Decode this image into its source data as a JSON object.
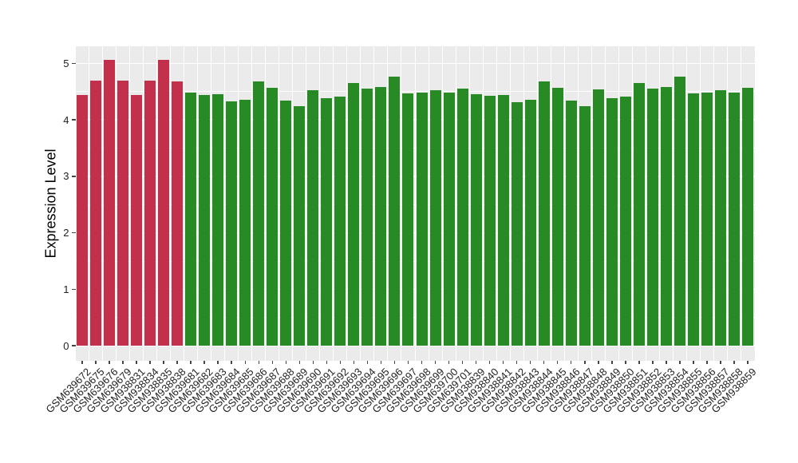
{
  "figure": {
    "background_color": "#FFFFFF",
    "panel_background_color": "#EBEBEB",
    "gridline_color": "#FFFFFF",
    "tick_mark_color": "#444444",
    "axis_text_color": "#222222"
  },
  "chart_data": {
    "type": "bar",
    "title": "",
    "xlabel": "",
    "ylabel": "Expression Level",
    "ylim": [
      -0.26,
      5.3
    ],
    "yticks": [
      0,
      1,
      2,
      3,
      4,
      5
    ],
    "yticks_minor": [
      0.5,
      1.5,
      2.5,
      3.5,
      4.5
    ],
    "grid": "white major/minor horizontal lines and vertical category-boundary lines on gray panel",
    "legend_position": "none",
    "bar_group_colors": {
      "red": "#C2304C",
      "green": "#288A24"
    },
    "categories": [
      "GSM639672",
      "GSM639675",
      "GSM639676",
      "GSM639679",
      "GSM938831",
      "GSM938834",
      "GSM938835",
      "GSM938838",
      "GSM639681",
      "GSM639682",
      "GSM639683",
      "GSM639684",
      "GSM639685",
      "GSM639686",
      "GSM639687",
      "GSM639688",
      "GSM639689",
      "GSM639690",
      "GSM639691",
      "GSM639692",
      "GSM639693",
      "GSM639694",
      "GSM639695",
      "GSM639696",
      "GSM639697",
      "GSM639698",
      "GSM639699",
      "GSM639700",
      "GSM639701",
      "GSM938839",
      "GSM938840",
      "GSM938841",
      "GSM938842",
      "GSM938843",
      "GSM938844",
      "GSM938845",
      "GSM938846",
      "GSM938847",
      "GSM938848",
      "GSM938849",
      "GSM938850",
      "GSM938851",
      "GSM938852",
      "GSM938853",
      "GSM938854",
      "GSM938855",
      "GSM938856",
      "GSM938857",
      "GSM938858",
      "GSM938859"
    ],
    "values": [
      4.44,
      4.69,
      5.06,
      4.69,
      4.44,
      4.69,
      5.06,
      4.68,
      4.48,
      4.44,
      4.46,
      4.33,
      4.36,
      4.68,
      4.57,
      4.34,
      4.25,
      4.52,
      4.38,
      4.41,
      4.65,
      4.55,
      4.58,
      4.76,
      4.47,
      4.48,
      4.52,
      4.48,
      4.56,
      4.46,
      4.43,
      4.44,
      4.31,
      4.35,
      4.68,
      4.57,
      4.34,
      4.25,
      4.54,
      4.39,
      4.41,
      4.65,
      4.55,
      4.58,
      4.76,
      4.47,
      4.48,
      4.53,
      4.48,
      4.57
    ],
    "groups": [
      "red",
      "red",
      "red",
      "red",
      "red",
      "red",
      "red",
      "red",
      "green",
      "green",
      "green",
      "green",
      "green",
      "green",
      "green",
      "green",
      "green",
      "green",
      "green",
      "green",
      "green",
      "green",
      "green",
      "green",
      "green",
      "green",
      "green",
      "green",
      "green",
      "green",
      "green",
      "green",
      "green",
      "green",
      "green",
      "green",
      "green",
      "green",
      "green",
      "green",
      "green",
      "green",
      "green",
      "green",
      "green",
      "green",
      "green",
      "green",
      "green",
      "green"
    ]
  }
}
